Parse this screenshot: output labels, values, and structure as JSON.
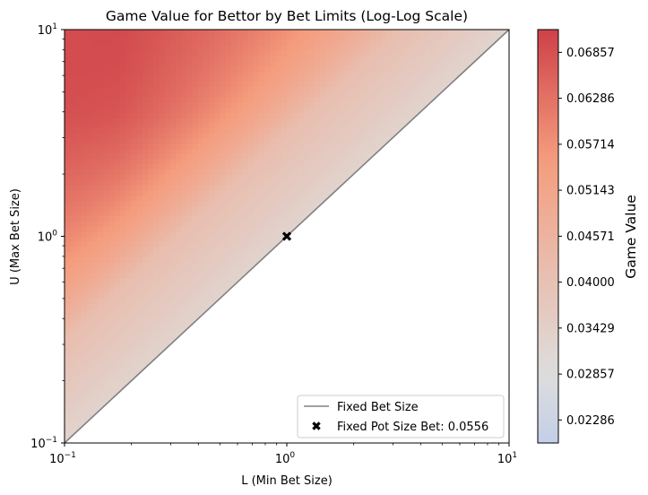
{
  "chart_data": {
    "type": "heatmap",
    "title": "Game Value for Bettor by Bet Limits (Log-Log Scale)",
    "xlabel": "L (Min Bet Size)",
    "ylabel": "U (Max Bet Size)",
    "xscale": "log",
    "yscale": "log",
    "xlim": [
      0.1,
      10
    ],
    "ylim": [
      0.1,
      10
    ],
    "x_ticks": [
      {
        "value": 0.1,
        "base": "10",
        "exp": "−1"
      },
      {
        "value": 1,
        "base": "10",
        "exp": "0"
      },
      {
        "value": 10,
        "base": "10",
        "exp": "1"
      }
    ],
    "y_ticks": [
      {
        "value": 0.1,
        "base": "10",
        "exp": "−1"
      },
      {
        "value": 1,
        "base": "10",
        "exp": "0"
      },
      {
        "value": 10,
        "base": "10",
        "exp": "1"
      }
    ],
    "colormap": "coolwarm",
    "colorbar": {
      "label": "Game Value",
      "min": 0.02,
      "max": 0.0714,
      "ticks": [
        0.02286,
        0.02857,
        0.03429,
        0.04,
        0.04571,
        0.05143,
        0.05714,
        0.06286,
        0.06857
      ],
      "tick_labels": [
        "0.02286",
        "0.02857",
        "0.03429",
        "0.04000",
        "0.04571",
        "0.05143",
        "0.05714",
        "0.06286",
        "0.06857"
      ]
    },
    "series": [
      {
        "name": "Fixed Bet Size",
        "kind": "line",
        "x": [
          0.1,
          10
        ],
        "y": [
          0.1,
          10
        ],
        "color": "#808080"
      },
      {
        "name": "Fixed Pot Size Bet: 0.0556",
        "kind": "marker",
        "x": 1,
        "y": 1,
        "value": 0.0556,
        "color": "#000000"
      }
    ],
    "legend": {
      "position": "lower-right"
    }
  }
}
